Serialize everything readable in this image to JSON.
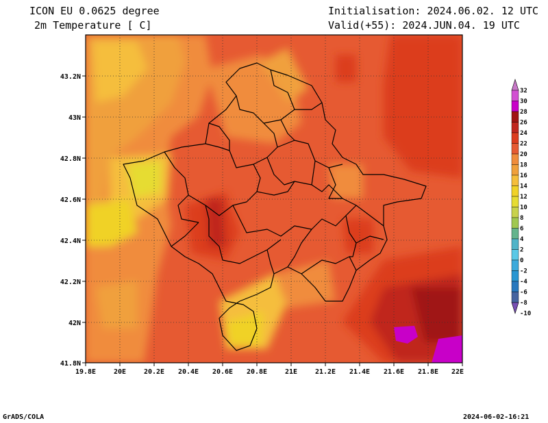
{
  "header": {
    "model": "ICON EU 0.0625 degree",
    "variable": "2m Temperature [ C]",
    "init": "Initialisation: 2024.06.02. 12 UTC",
    "valid": "Valid(+55): 2024.JUN.04. 19 UTC"
  },
  "axes": {
    "lat_ticks": [
      "43.2N",
      "43N",
      "42.8N",
      "42.6N",
      "42.4N",
      "42.2N",
      "42N",
      "41.8N"
    ],
    "lon_ticks": [
      "19.8E",
      "20E",
      "20.2E",
      "20.4E",
      "20.6E",
      "20.8E",
      "21E",
      "21.2E",
      "21.4E",
      "21.6E",
      "21.8E",
      "22E"
    ]
  },
  "colorbar": {
    "labels": [
      "32",
      "30",
      "28",
      "26",
      "24",
      "22",
      "20",
      "18",
      "16",
      "14",
      "12",
      "10",
      "8",
      "6",
      "4",
      "2",
      "0",
      "-2",
      "-4",
      "-6",
      "-8",
      "-10"
    ],
    "colors": [
      "#c878c8",
      "#d250d2",
      "#c800c8",
      "#a01414",
      "#c0261e",
      "#dc3c1e",
      "#e65a32",
      "#f08c3c",
      "#f0a03c",
      "#f5be3c",
      "#f0d228",
      "#e6dc32",
      "#c8d24b",
      "#a0c850",
      "#64b48c",
      "#50b4c8",
      "#5ac8e6",
      "#3caadc",
      "#2896d2",
      "#2878be",
      "#4664a0",
      "#7850b4"
    ]
  },
  "footer": {
    "left": "GrADS/COLA",
    "right": "2024-06-02-16:21"
  }
}
